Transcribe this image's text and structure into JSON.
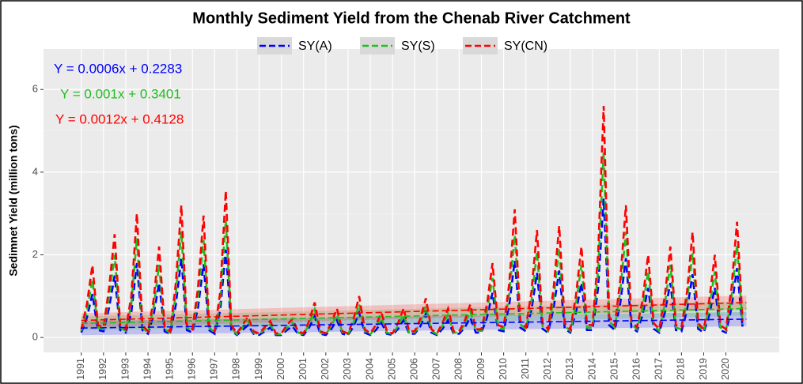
{
  "chart_data": {
    "type": "line",
    "title": "Monthly Sediment Yield from the Chenab River Catchment",
    "y_label": "Sedimnet Yield (million tons)",
    "xlim": [
      1989.3,
      2022.4
    ],
    "xticks": [
      1991,
      1992,
      1993,
      1994,
      1995,
      1996,
      1997,
      1998,
      1999,
      2000,
      2001,
      2002,
      2003,
      2004,
      2005,
      2006,
      2007,
      2008,
      2009,
      2010,
      2011,
      2012,
      2013,
      2014,
      2015,
      2016,
      2017,
      2018,
      2019,
      2020
    ],
    "ylim": [
      -0.36,
      6.98
    ],
    "yticks": [
      0,
      2,
      4,
      6
    ],
    "grid": true,
    "x": [
      1991,
      1991.25,
      1991.5,
      1991.75,
      1992,
      1992.25,
      1992.5,
      1992.75,
      1993,
      1993.25,
      1993.5,
      1993.75,
      1994,
      1994.25,
      1994.5,
      1994.75,
      1995,
      1995.25,
      1995.5,
      1995.75,
      1996,
      1996.25,
      1996.5,
      1996.75,
      1997,
      1997.25,
      1997.5,
      1997.75,
      1998,
      1998.25,
      1998.5,
      1998.75,
      1999,
      1999.25,
      1999.5,
      1999.75,
      2000,
      2000.25,
      2000.5,
      2000.75,
      2001,
      2001.25,
      2001.5,
      2001.75,
      2002,
      2002.25,
      2002.5,
      2002.75,
      2003,
      2003.25,
      2003.5,
      2003.75,
      2004,
      2004.25,
      2004.5,
      2004.75,
      2005,
      2005.25,
      2005.5,
      2005.75,
      2006,
      2006.25,
      2006.5,
      2006.75,
      2007,
      2007.25,
      2007.5,
      2007.75,
      2008,
      2008.25,
      2008.5,
      2008.75,
      2009,
      2009.25,
      2009.5,
      2009.75,
      2010,
      2010.25,
      2010.5,
      2010.75,
      2011,
      2011.25,
      2011.5,
      2011.75,
      2012,
      2012.25,
      2012.5,
      2012.75,
      2013,
      2013.25,
      2013.5,
      2013.75,
      2014,
      2014.25,
      2014.5,
      2014.75,
      2015,
      2015.25,
      2015.5,
      2015.75,
      2016,
      2016.25,
      2016.5,
      2016.75,
      2017,
      2017.25,
      2017.5,
      2017.75,
      2018,
      2018.25,
      2018.5,
      2018.75,
      2019,
      2019.25,
      2019.5,
      2019.75,
      2020,
      2020.25,
      2020.5,
      2020.75
    ],
    "series": [
      {
        "name": "SY(A)",
        "color": "#0000ff",
        "values": [
          0.12,
          0.48,
          1.05,
          0.18,
          0.15,
          0.72,
          1.5,
          0.18,
          0.12,
          0.6,
          1.8,
          0.18,
          0.09,
          0.54,
          1.32,
          0.15,
          0.09,
          0.78,
          1.92,
          0.18,
          0.12,
          0.72,
          1.77,
          0.18,
          0.09,
          0.66,
          2.13,
          0.18,
          0.06,
          0.18,
          0.3,
          0.09,
          0.06,
          0.15,
          0.24,
          0.06,
          0.06,
          0.18,
          0.27,
          0.09,
          0.06,
          0.24,
          0.51,
          0.09,
          0.06,
          0.21,
          0.42,
          0.09,
          0.06,
          0.27,
          0.6,
          0.12,
          0.06,
          0.18,
          0.36,
          0.09,
          0.06,
          0.21,
          0.42,
          0.09,
          0.09,
          0.27,
          0.57,
          0.12,
          0.06,
          0.21,
          0.42,
          0.09,
          0.09,
          0.24,
          0.48,
          0.12,
          0.12,
          0.48,
          1.08,
          0.18,
          0.15,
          0.78,
          1.86,
          0.24,
          0.15,
          0.66,
          1.56,
          0.21,
          0.12,
          0.72,
          1.62,
          0.21,
          0.12,
          0.6,
          1.32,
          0.18,
          0.18,
          1.2,
          3.36,
          0.3,
          0.18,
          0.84,
          1.92,
          0.24,
          0.15,
          0.54,
          1.2,
          0.21,
          0.12,
          0.6,
          1.32,
          0.18,
          0.15,
          0.66,
          1.53,
          0.21,
          0.12,
          0.54,
          1.2,
          0.18,
          0.12,
          0.72,
          1.68,
          0.24
        ]
      },
      {
        "name": "SY(S)",
        "color": "#1fbf1f",
        "values": [
          0.16,
          0.64,
          1.4,
          0.24,
          0.2,
          0.96,
          2.0,
          0.24,
          0.16,
          0.8,
          2.4,
          0.24,
          0.12,
          0.72,
          1.76,
          0.2,
          0.12,
          1.04,
          2.56,
          0.24,
          0.16,
          0.96,
          2.36,
          0.24,
          0.12,
          0.88,
          2.84,
          0.24,
          0.08,
          0.24,
          0.4,
          0.12,
          0.08,
          0.2,
          0.32,
          0.08,
          0.08,
          0.24,
          0.36,
          0.12,
          0.08,
          0.32,
          0.68,
          0.12,
          0.08,
          0.28,
          0.56,
          0.12,
          0.08,
          0.36,
          0.8,
          0.16,
          0.08,
          0.24,
          0.48,
          0.12,
          0.08,
          0.28,
          0.56,
          0.12,
          0.12,
          0.36,
          0.76,
          0.16,
          0.08,
          0.28,
          0.56,
          0.12,
          0.12,
          0.32,
          0.64,
          0.16,
          0.16,
          0.64,
          1.44,
          0.24,
          0.2,
          1.04,
          2.48,
          0.32,
          0.2,
          0.88,
          2.08,
          0.28,
          0.16,
          0.96,
          2.16,
          0.28,
          0.16,
          0.8,
          1.76,
          0.24,
          0.24,
          1.6,
          4.48,
          0.4,
          0.24,
          1.12,
          2.56,
          0.32,
          0.2,
          0.72,
          1.6,
          0.28,
          0.16,
          0.8,
          1.76,
          0.24,
          0.2,
          0.88,
          2.04,
          0.28,
          0.16,
          0.72,
          1.6,
          0.24,
          0.16,
          0.96,
          2.24,
          0.32
        ]
      },
      {
        "name": "SY(CN)",
        "color": "#ff0000",
        "values": [
          0.2,
          0.8,
          1.75,
          0.3,
          0.25,
          1.2,
          2.5,
          0.3,
          0.2,
          1.0,
          3.0,
          0.3,
          0.15,
          0.9,
          2.2,
          0.25,
          0.15,
          1.3,
          3.2,
          0.3,
          0.2,
          1.2,
          2.95,
          0.3,
          0.15,
          1.1,
          3.55,
          0.3,
          0.1,
          0.3,
          0.5,
          0.15,
          0.1,
          0.25,
          0.4,
          0.1,
          0.1,
          0.3,
          0.45,
          0.15,
          0.1,
          0.4,
          0.85,
          0.15,
          0.1,
          0.35,
          0.7,
          0.15,
          0.1,
          0.45,
          1.0,
          0.2,
          0.1,
          0.3,
          0.6,
          0.15,
          0.1,
          0.35,
          0.7,
          0.15,
          0.15,
          0.45,
          0.95,
          0.2,
          0.1,
          0.35,
          0.7,
          0.15,
          0.15,
          0.4,
          0.8,
          0.2,
          0.2,
          0.8,
          1.8,
          0.3,
          0.25,
          1.3,
          3.1,
          0.4,
          0.25,
          1.1,
          2.6,
          0.35,
          0.2,
          1.2,
          2.7,
          0.35,
          0.2,
          1.0,
          2.2,
          0.3,
          0.3,
          2.0,
          5.6,
          0.5,
          0.3,
          1.4,
          3.2,
          0.4,
          0.25,
          0.9,
          2.0,
          0.35,
          0.2,
          1.0,
          2.2,
          0.3,
          0.25,
          1.1,
          2.55,
          0.35,
          0.2,
          0.9,
          2.0,
          0.3,
          0.2,
          1.2,
          2.8,
          0.4
        ]
      }
    ],
    "trend_lines": [
      {
        "color": "#0000ff",
        "x": [
          1991,
          2020.92
        ],
        "values": [
          0.2289,
          0.4443
        ]
      },
      {
        "color": "#1fbf1f",
        "x": [
          1991,
          2020.92
        ],
        "values": [
          0.3411,
          0.7001
        ]
      },
      {
        "color": "#ff0000",
        "x": [
          1991,
          2020.92
        ],
        "values": [
          0.414,
          0.8448
        ]
      }
    ],
    "annotations": [
      {
        "text": "Y = 0.0006x + 0.2283",
        "color": "#0000ff"
      },
      {
        "text": "Y = 0.001x + 0.3401",
        "color": "#1fbf1f"
      },
      {
        "text": "Y = 0.0012x + 0.4128",
        "color": "#ff0000"
      }
    ]
  }
}
